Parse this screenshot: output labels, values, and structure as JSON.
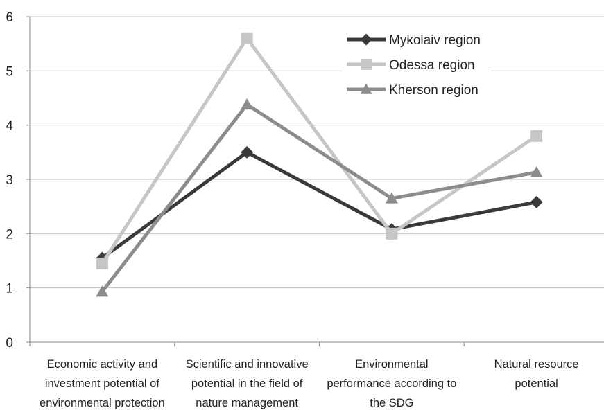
{
  "chart_data": {
    "type": "line",
    "categories": [
      [
        "Economic activity and",
        "investment potential of",
        "environmental protection"
      ],
      [
        "Scientific and innovative",
        "potential in the field of",
        "nature management"
      ],
      [
        "Environmental",
        "performance according to",
        "the SDG"
      ],
      [
        "Natural resource",
        "potential"
      ]
    ],
    "series": [
      {
        "name": "Mykolaiv region",
        "values": [
          1.55,
          3.5,
          2.08,
          2.58
        ],
        "color": "#3a3a3a",
        "marker": "diamond"
      },
      {
        "name": "Odessa region",
        "values": [
          1.45,
          5.6,
          2.0,
          3.8
        ],
        "color": "#c6c6c6",
        "marker": "square"
      },
      {
        "name": "Kherson region",
        "values": [
          0.93,
          4.38,
          2.65,
          3.13
        ],
        "color": "#8c8c8c",
        "marker": "triangle"
      }
    ],
    "yticks": [
      "0",
      "1",
      "2",
      "3",
      "4",
      "5",
      "6"
    ],
    "ylim": [
      0,
      6
    ],
    "grid": true,
    "legend_position": "top-right"
  }
}
